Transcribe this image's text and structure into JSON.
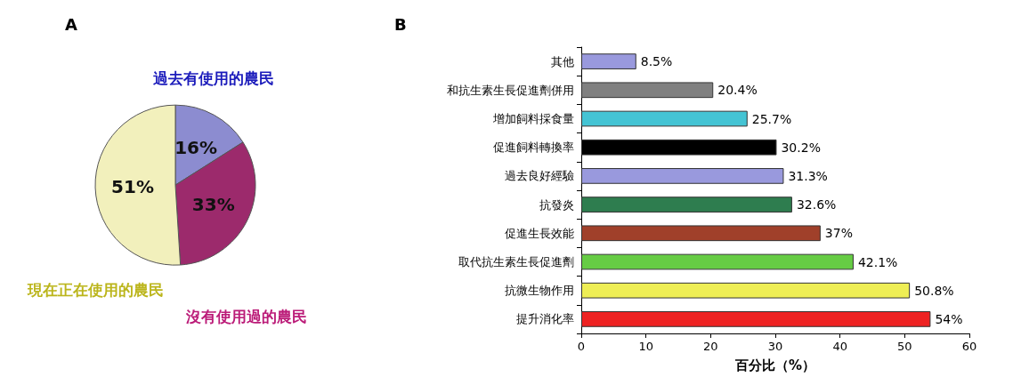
{
  "chart_data": [
    {
      "type": "pie",
      "title": "A",
      "categories": [
        "過去有使用的農民",
        "沒有使用過的農民",
        "現在正在使用的農民"
      ],
      "values": [
        16,
        33,
        51
      ],
      "colors": [
        "#8c8cd0",
        "#9c2a6c",
        "#f2f0bc"
      ],
      "value_labels": [
        "16%",
        "33%",
        "51%"
      ]
    },
    {
      "type": "bar",
      "title": "B",
      "orientation": "horizontal",
      "categories": [
        "其他",
        "和抗生素生長促進劑併用",
        "增加飼料採食量",
        "促進飼料轉換率",
        "過去良好經驗",
        "抗發炎",
        "促進生長效能",
        "取代抗生素生長促進劑",
        "抗微生物作用",
        "提升消化率"
      ],
      "values": [
        8.5,
        20.4,
        25.7,
        30.2,
        31.3,
        32.6,
        37,
        42.1,
        50.8,
        54
      ],
      "colors": [
        "#9999dd",
        "#808080",
        "#44c4d4",
        "#000000",
        "#9999dd",
        "#2e7d4f",
        "#a0402a",
        "#66cc44",
        "#eeee55",
        "#ee2222"
      ],
      "value_labels": [
        "8.5%",
        "20.4%",
        "25.7%",
        "30.2%",
        "31.3%",
        "32.6%",
        "37%",
        "42.1%",
        "50.8%",
        "54%"
      ],
      "xlim": [
        0,
        60
      ],
      "xticks": [
        0,
        10,
        20,
        30,
        40,
        50,
        60
      ],
      "xlabel": "百分比（%）"
    }
  ]
}
